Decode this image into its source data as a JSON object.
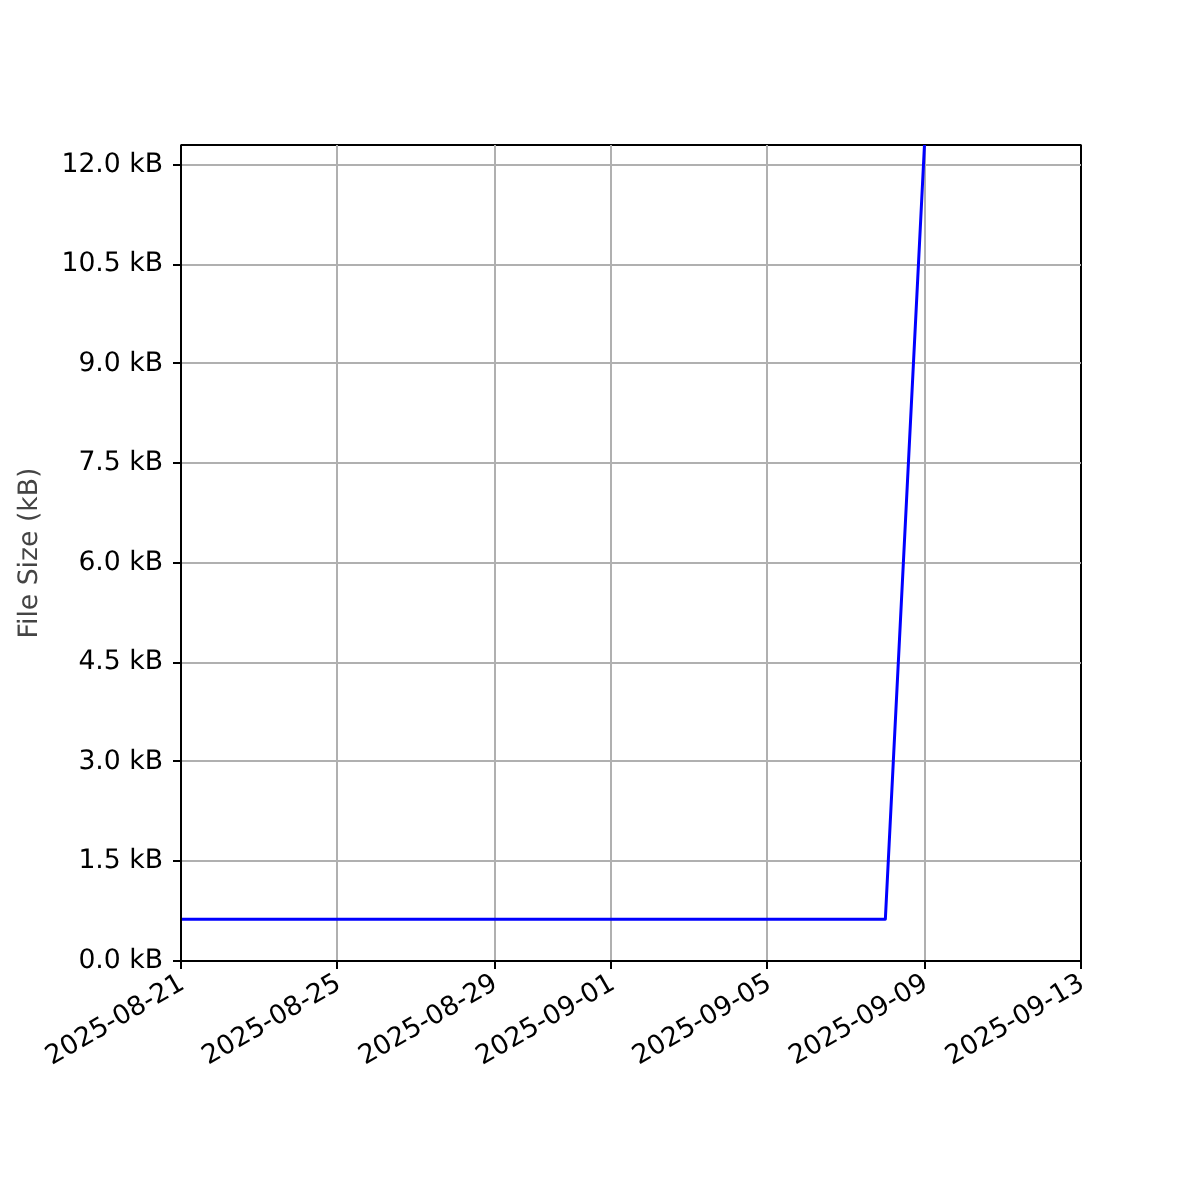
{
  "chart_data": {
    "type": "line",
    "ylabel": "File Size (kB)",
    "x": [
      "2025-08-21",
      "2025-09-08",
      "2025-09-09"
    ],
    "series": [
      {
        "color": "#0000ff",
        "values": [
          0.63,
          0.63,
          12.3
        ]
      }
    ],
    "xlim": [
      "2025-08-21",
      "2025-09-13"
    ],
    "xticks": [
      "2025-08-21",
      "2025-08-25",
      "2025-08-29",
      "2025-09-01",
      "2025-09-05",
      "2025-09-09",
      "2025-09-13"
    ],
    "ylim": [
      0,
      12.3
    ],
    "yticks": [
      {
        "value": 0,
        "label": "0.0 kB"
      },
      {
        "value": 1.5,
        "label": "1.5 kB"
      },
      {
        "value": 3,
        "label": "3.0 kB"
      },
      {
        "value": 4.5,
        "label": "4.5 kB"
      },
      {
        "value": 6,
        "label": "6.0 kB"
      },
      {
        "value": 7.5,
        "label": "7.5 kB"
      },
      {
        "value": 9,
        "label": "9.0 kB"
      },
      {
        "value": 10.5,
        "label": "10.5 kB"
      },
      {
        "value": 12,
        "label": "12.0 kB"
      }
    ],
    "grid": true,
    "marker": "none",
    "line_style": "solid"
  }
}
